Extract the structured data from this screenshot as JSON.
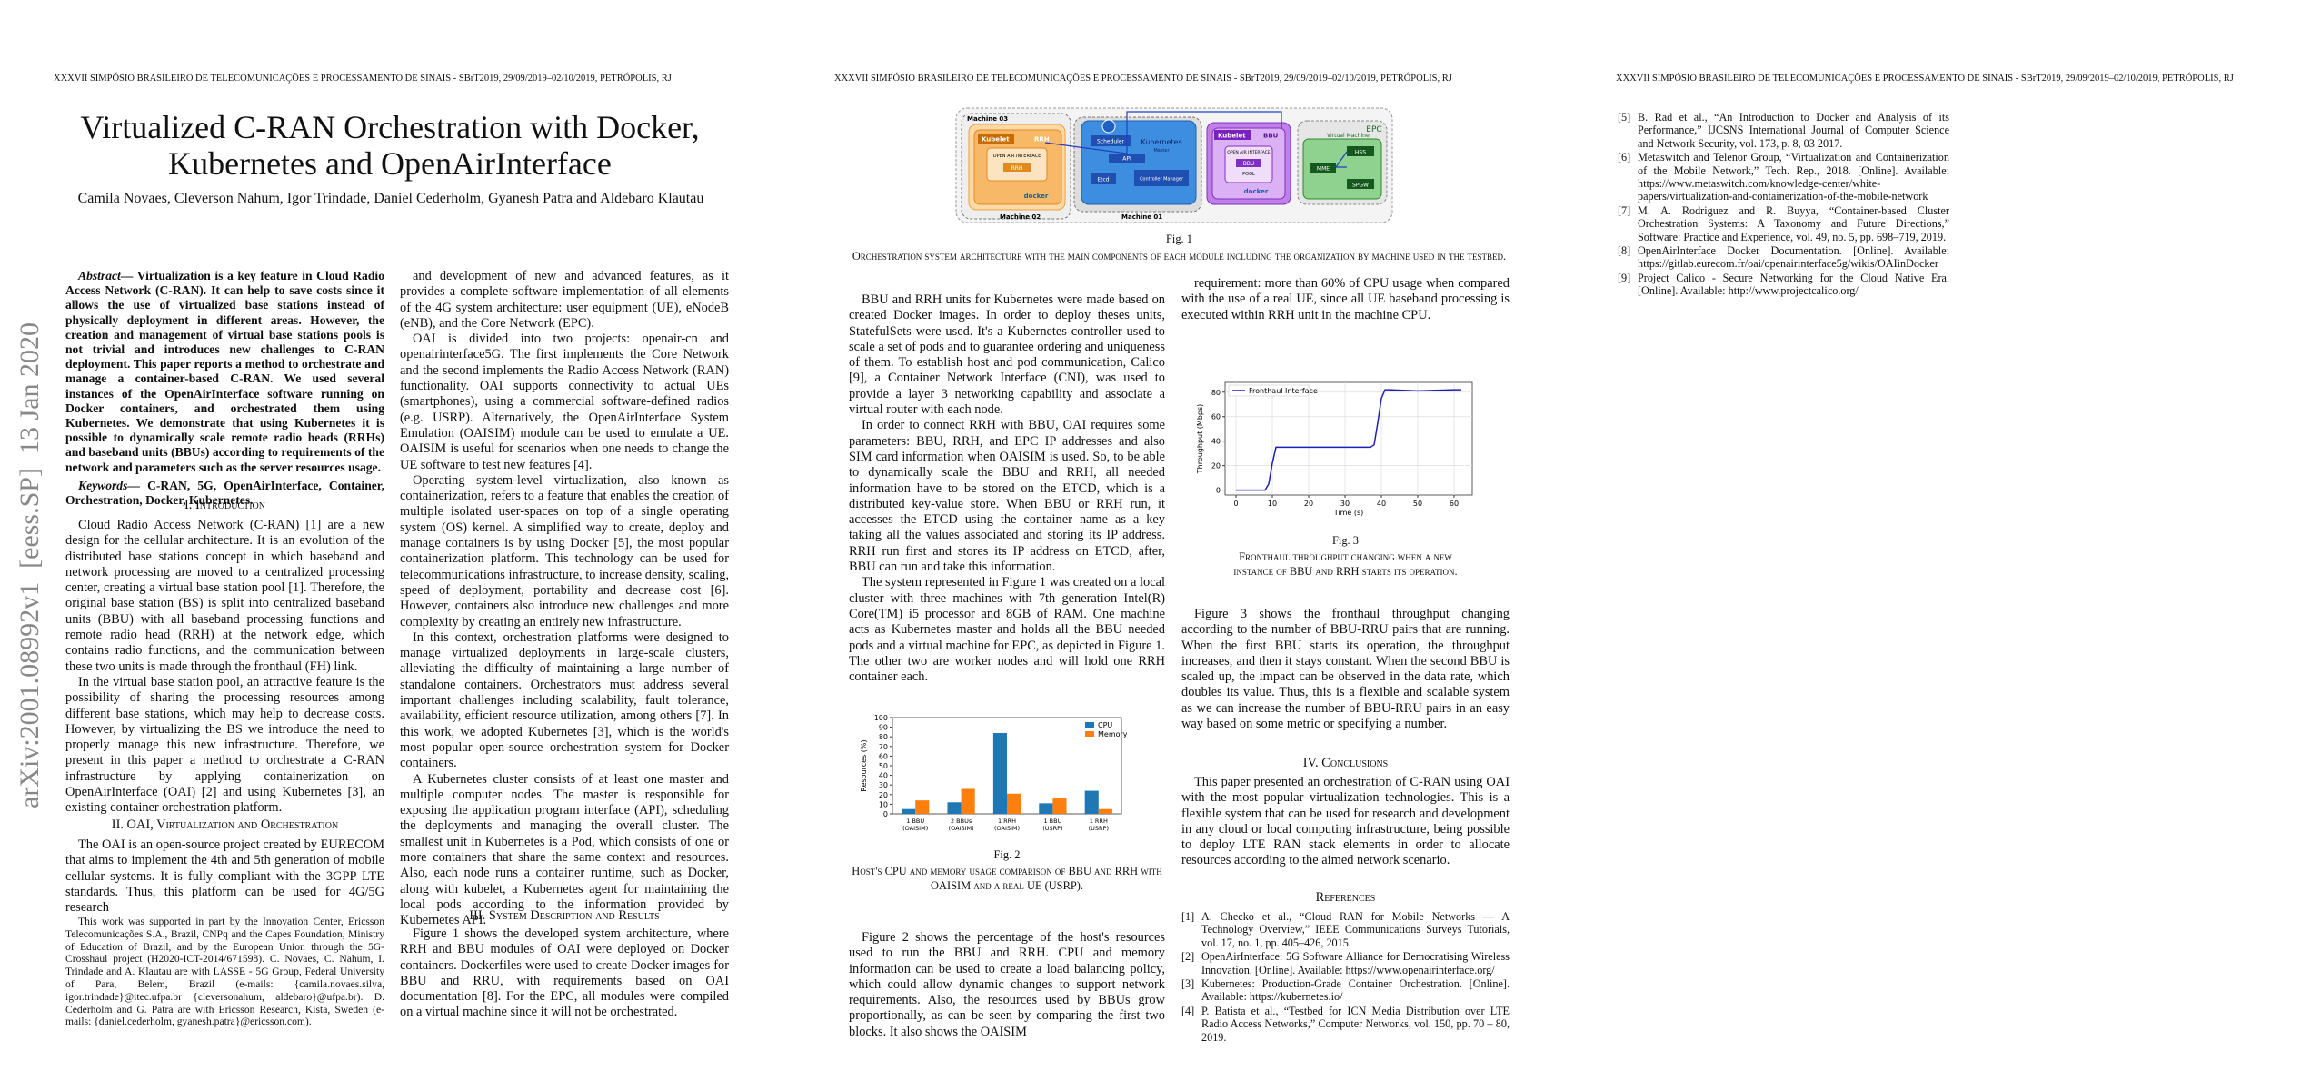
{
  "pages": [
    {
      "header": "XXXVII SIMPÓSIO BRASILEIRO DE TELECOMUNICAÇÕES E PROCESSAMENTO DE SINAIS - SBrT2019, 29/09/2019–02/10/2019, PETRÓPOLIS, RJ",
      "arxiv": "arXiv:2001.08992v1  [eess.SP]  13 Jan 2020",
      "title": "Virtualized C-RAN Orchestration with Docker, Kubernetes and OpenAirInterface",
      "authors": "Camila Novaes, Cleverson Nahum, Igor Trindade, Daniel Cederholm, Gyanesh Patra and Aldebaro Klautau",
      "abstract_label": "Abstract—",
      "abstract": "Virtualization is a key feature in Cloud Radio Access Network (C-RAN). It can help to save costs since it allows the use of virtualized base stations instead of physically deployment in different areas. However, the creation and management of virtual base stations pools is not trivial and introduces new challenges to C-RAN deployment. This paper reports a method to orchestrate and manage a container-based C-RAN. We used several instances of the OpenAirInterface software running on Docker containers, and orchestrated them using Kubernetes. We demonstrate that using Kubernetes it is possible to dynamically scale remote radio heads (RRHs) and baseband units (BBUs) according to requirements of the network and parameters such as the server resources usage.",
      "keywords_label": "Keywords—",
      "keywords": "C-RAN, 5G, OpenAirInterface, Container, Orchestration, Docker, Kubernetes.",
      "sec1_title": "I. Introduction",
      "sec1_paras": [
        "Cloud Radio Access Network (C-RAN) [1] are a new design for the cellular architecture. It is an evolution of the distributed base stations concept in which baseband and network processing are moved to a centralized processing center, creating a virtual base station pool [1]. Therefore, the original base station (BS) is split into centralized baseband units (BBU) with all baseband processing functions and remote radio head (RRH) at the network edge, which contains radio functions, and the communication between these two units is made through the fronthaul (FH) link.",
        "In the virtual base station pool, an attractive feature is the possibility of sharing the processing resources among different base stations, which may help to decrease costs. However, by virtualizing the BS we introduce the need to properly manage this new infrastructure. Therefore, we present in this paper a method to orchestrate a C-RAN infrastructure by applying containerization on OpenAirInterface (OAI) [2] and using Kubernetes [3], an existing container orchestration platform."
      ],
      "sec2_title": "II. OAI, Virtualization and Orchestration",
      "sec2_paras": [
        "The OAI is an open-source project created by EURECOM that aims to implement the 4th and 5th generation of mobile cellular systems. It is fully compliant with the 3GPP LTE standards. Thus, this platform can be used for 4G/5G research"
      ],
      "footnote": "This work was supported in part by the Innovation Center, Ericsson Telecomunicações S.A., Brazil, CNPq and the Capes Foundation, Ministry of Education of Brazil, and by the European Union through the 5G-Crosshaul project (H2020-ICT-2014/671598). C. Novaes, C. Nahum, I. Trindade and A. Klautau are with LASSE - 5G Group, Federal University of Para, Belem, Brazil (e-mails: {camila.novaes.silva, igor.trindade}@itec.ufpa.br {cleversonahum, aldebaro}@ufpa.br). D. Cederholm and G. Patra are with Ericsson Research, Kista, Sweden (e-mails: {daniel.cederholm, gyanesh.patra}@ericsson.com).",
      "col2_paras": [
        "and development of new and advanced features, as it provides a complete software implementation of all elements of the 4G system architecture: user equipment (UE), eNodeB (eNB), and the Core Network (EPC).",
        "OAI is divided into two projects: openair-cn and openairinterface5G. The first implements the Core Network and the second implements the Radio Access Network (RAN) functionality. OAI supports connectivity to actual UEs (smartphones), using a commercial software-defined radios (e.g. USRP). Alternatively, the OpenAirInterface System Emulation (OAISIM) module can be used to emulate a UE. OAISIM is useful for scenarios when one needs to change the UE software to test new features [4].",
        "Operating system-level virtualization, also known as containerization, refers to a feature that enables the creation of multiple isolated user-spaces on top of a single operating system (OS) kernel. A simplified way to create, deploy and manage containers is by using Docker [5], the most popular containerization platform. This technology can be used for telecommunications infrastructure, to increase density, scaling, speed of deployment, portability and decrease cost [6]. However, containers also introduce new challenges and more complexity by creating an entirely new infrastructure.",
        "In this context, orchestration platforms were designed to manage virtualized deployments in large-scale clusters, alleviating the difficulty of maintaining a large number of standalone containers. Orchestrators must address several important challenges including scalability, fault tolerance, availability, efficient resource utilization, among others [7]. In this work, we adopted Kubernetes [3], which is the world's most popular open-source orchestration system for Docker containers.",
        "A Kubernetes cluster consists of at least one master and multiple computer nodes. The master is responsible for exposing the application program interface (API), scheduling the deployments and managing the overall cluster. The smallest unit in Kubernetes is a Pod, which consists of one or more containers that share the same context and resources. Also, each node runs a container runtime, such as Docker, along with kubelet, a Kubernetes agent for maintaining the local pods according to the information provided by Kubernetes API."
      ],
      "sec3_title": "III. System Description and Results",
      "sec3_paras": [
        "Figure 1 shows the developed system architecture, where RRH and BBU modules of OAI were deployed on Docker containers. Dockerfiles were used to create Docker images for BBU and RRU, with requirements based on OAI documentation [8]. For the EPC, all modules were compiled on a virtual machine since it will not be orchestrated."
      ]
    },
    {
      "header": "XXXVII SIMPÓSIO BRASILEIRO DE TELECOMUNICAÇÕES E PROCESSAMENTO DE SINAIS - SBrT2019, 29/09/2019–02/10/2019, PETRÓPOLIS, RJ",
      "fig1": {
        "machine_top": "Machine 03",
        "machine_left": "Machine 02",
        "machine_mid": "Machine 01",
        "rrh_kubelet": "Kubelet",
        "rrh_label": "RRH",
        "rrh_oai": "OPEN AIR INTERFACE",
        "rrh_pod": "RRH",
        "rrh_docker": "docker",
        "scheduler": "Scheduler",
        "api": "API",
        "etcd": "Etcd",
        "controller": "Controller Manager",
        "kubernetes": "Kubernetes",
        "master": "Master",
        "bbu_kubelet": "Kubelet",
        "bbu_label": "BBU",
        "bbu_oai": "OPEN AIR INTERFACE",
        "bbu_pod": "BBU",
        "bbu_pool": "POOL",
        "bbu_docker": "docker",
        "epc": "EPC",
        "vm": "Virtual Machine",
        "hss": "HSS",
        "mme": "MME",
        "spgw": "SPGW"
      },
      "fig1_label": "Fig. 1",
      "fig1_caption": "Orchestration system architecture with the main components of each module including the organization by machine used in the testbed.",
      "left_paras": [
        "BBU and RRH units for Kubernetes were made based on created Docker images. In order to deploy theses units, StatefulSets were used. It's a Kubernetes controller used to scale a set of pods and to guarantee ordering and uniqueness of them. To establish host and pod communication, Calico [9], a Container Network Interface (CNI), was used to provide a layer 3 networking capability and associate a virtual router with each node.",
        "In order to connect RRH with BBU, OAI requires some parameters: BBU, RRH, and EPC IP addresses and also SIM card information when OAISIM is used. So, to be able to dynamically scale the BBU and RRH, all needed information have to be stored on the ETCD, which is a distributed key-value store. When BBU or RRH run, it accesses the ETCD using the container name as a key taking all the values associated and storing its IP address. RRH run first and stores its IP address on ETCD, after, BBU can run and take this information.",
        "The system represented in Figure 1 was created on a local cluster with three machines with 7th generation Intel(R) Core(TM) i5 processor and 8GB of RAM. One machine acts as Kubernetes master and holds all the BBU needed pods and a virtual machine for EPC, as depicted in Figure 1. The other two are worker nodes and will hold one RRH container each."
      ],
      "fig2_label": "Fig. 2",
      "fig2_caption": "Host's CPU and memory usage comparison of BBU and RRH with OAISIM and a real UE (USRP).",
      "left_paras2": [
        "Figure 2 shows the percentage of the host's resources used to run the BBU and RRH. CPU and memory information can be used to create a load balancing policy, which could allow dynamic changes to support network requirements. Also, the resources used by BBUs grow proportionally, as can be seen by comparing the first two blocks. It also shows the OAISIM"
      ],
      "right_paras": [
        "requirement: more than 60% of CPU usage when compared with the use of a real UE, since all UE baseband processing is executed within RRH unit in the machine CPU."
      ],
      "fig3_label": "Fig. 3",
      "fig3_caption": "Fronthaul throughput changing when a new instance of BBU and RRH starts its operation.",
      "right_paras2": [
        "Figure 3 shows the fronthaul throughput changing according to the number of BBU-RRU pairs that are running. When the first BBU starts its operation, the throughput increases, and then it stays constant. When the second BBU is scaled up, the impact can be observed in the data rate, which doubles its value. Thus, this is a flexible and scalable system as we can increase the number of BBU-RRU pairs in an easy way based on some metric or specifying a number."
      ],
      "sec4_title": "IV. Conclusions",
      "sec4_paras": [
        "This paper presented an orchestration of C-RAN using OAI with the most popular virtualization technologies. This is a flexible system that can be used for research and development in any cloud or local computing infrastructure, being possible to deploy LTE RAN stack elements in order to allocate resources according to the aimed network scenario."
      ],
      "refs_title": "References",
      "refs": [
        [
          "[1]",
          "A. Checko et al., “Cloud RAN for Mobile Networks — A Technology Overview,” IEEE Communications Surveys Tutorials, vol. 17, no. 1, pp. 405–426, 2015."
        ],
        [
          "[2]",
          "OpenAirInterface: 5G Software Alliance for Democratising Wireless Innovation. [Online]. Available: https://www.openairinterface.org/"
        ],
        [
          "[3]",
          "Kubernetes: Production-Grade Container Orchestration. [Online]. Available: https://kubernetes.io/"
        ],
        [
          "[4]",
          "P. Batista et al., “Testbed for ICN Media Distribution over LTE Radio Access Networks,” Computer Networks, vol. 150, pp. 70 – 80, 2019."
        ]
      ]
    },
    {
      "header": "XXXVII SIMPÓSIO BRASILEIRO DE TELECOMUNICAÇÕES E PROCESSAMENTO DE SINAIS - SBrT2019, 29/09/2019–02/10/2019, PETRÓPOLIS, RJ",
      "refs": [
        [
          "[5]",
          "B. Rad et al., “An Introduction to Docker and Analysis of its Performance,” IJCSNS International Journal of Computer Science and Network Security, vol. 173, p. 8, 03 2017."
        ],
        [
          "[6]",
          "Metaswitch and Telenor Group, “Virtualization and Containerization of the Mobile Network,” Tech. Rep., 2018. [Online]. Available: https://www.metaswitch.com/knowledge-center/white-papers/virtualization-and-containerization-of-the-mobile-network"
        ],
        [
          "[7]",
          "M. A. Rodriguez and R. Buyya, “Container-based Cluster Orchestration Systems: A Taxonomy and Future Directions,” Software: Practice and Experience, vol. 49, no. 5, pp. 698–719, 2019."
        ],
        [
          "[8]",
          "OpenAirInterface Docker Documentation. [Online]. Available: https://gitlab.eurecom.fr/oai/openairinterface5g/wikis/OAIinDocker"
        ],
        [
          "[9]",
          "Project Calico - Secure Networking for the Cloud Native Era. [Online]. Available: http://www.projectcalico.org/"
        ]
      ]
    }
  ],
  "chart_data": [
    {
      "type": "bar",
      "ylabel": "Resources (%)",
      "categories": [
        "1 BBU (OAISIM)",
        "2 BBUs (OAISIM)",
        "1 RRH (OAISIM)",
        "1 BBU (USRP)",
        "1 RRH (USRP)"
      ],
      "series": [
        {
          "name": "CPU",
          "color": "#1f77b4",
          "values": [
            5,
            12,
            84,
            11,
            24
          ]
        },
        {
          "name": "Memory",
          "color": "#ff7f0e",
          "values": [
            14,
            26,
            21,
            16,
            5
          ]
        }
      ],
      "ylim": [
        0,
        100
      ],
      "yticks": [
        0,
        10,
        20,
        30,
        40,
        50,
        60,
        70,
        80,
        90,
        100
      ],
      "grid": false,
      "legend": "upper right"
    },
    {
      "type": "line",
      "xlabel": "Time (s)",
      "ylabel": "Throughput (Mbps)",
      "x": [
        0,
        8,
        9,
        10,
        11,
        12,
        20,
        30,
        37,
        38,
        39,
        40,
        41,
        42,
        50,
        60,
        62
      ],
      "series": [
        {
          "name": "Fronthaul Interface",
          "color": "#1f1fb4",
          "values": [
            0,
            0,
            5,
            22,
            35,
            35,
            35,
            35,
            35,
            37,
            55,
            75,
            82,
            82,
            81,
            82,
            82
          ]
        }
      ],
      "xlim": [
        -3,
        65
      ],
      "ylim": [
        -4,
        88
      ],
      "xticks": [
        0,
        10,
        20,
        30,
        40,
        50,
        60
      ],
      "yticks": [
        0,
        20,
        40,
        60,
        80
      ],
      "grid": true,
      "legend": "upper left"
    }
  ]
}
